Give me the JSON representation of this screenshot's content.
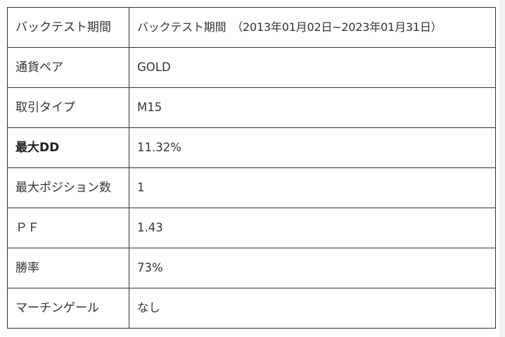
{
  "rows": [
    {
      "label": "バックテスト期間",
      "value": "バックテスト期間　（2013年01月02日~2023年01月31日）",
      "bold": false
    },
    {
      "label": "通貨ペア",
      "value": "GOLD",
      "bold": false
    },
    {
      "label": "取引タイプ",
      "value": "M15",
      "bold": false
    },
    {
      "label": "最大DD",
      "value": "11.32%",
      "bold": true
    },
    {
      "label": "最大ポジション数",
      "value": "1",
      "bold": false
    },
    {
      "label": "ＰＦ",
      "value": "1.43",
      "bold": false
    },
    {
      "label": "勝率",
      "value": "73%",
      "bold": false
    },
    {
      "label": "マーチンゲール",
      "value": "なし",
      "bold": false
    }
  ]
}
